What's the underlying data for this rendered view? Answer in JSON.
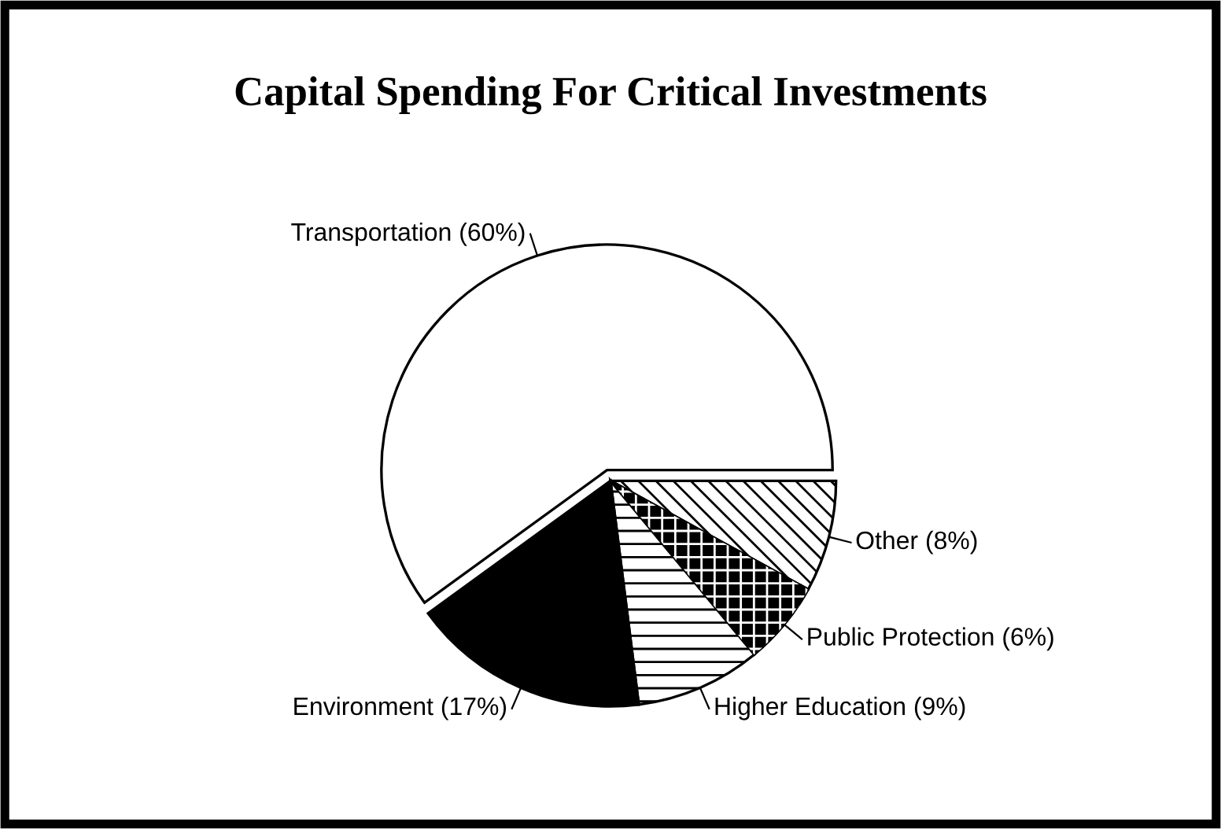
{
  "chart_data": {
    "type": "pie",
    "title": "Capital Spending For Critical Investments",
    "categories": [
      "Other (8%)",
      "Public Protection (6%)",
      "Higher Education (9%)",
      "Environment (17%)",
      "Transportation (60%)"
    ],
    "values": [
      8,
      6,
      9,
      17,
      60
    ],
    "colors": [
      "#ffffff",
      "#000000",
      "#ffffff",
      "#000000",
      "#ffffff"
    ],
    "legend": false
  }
}
